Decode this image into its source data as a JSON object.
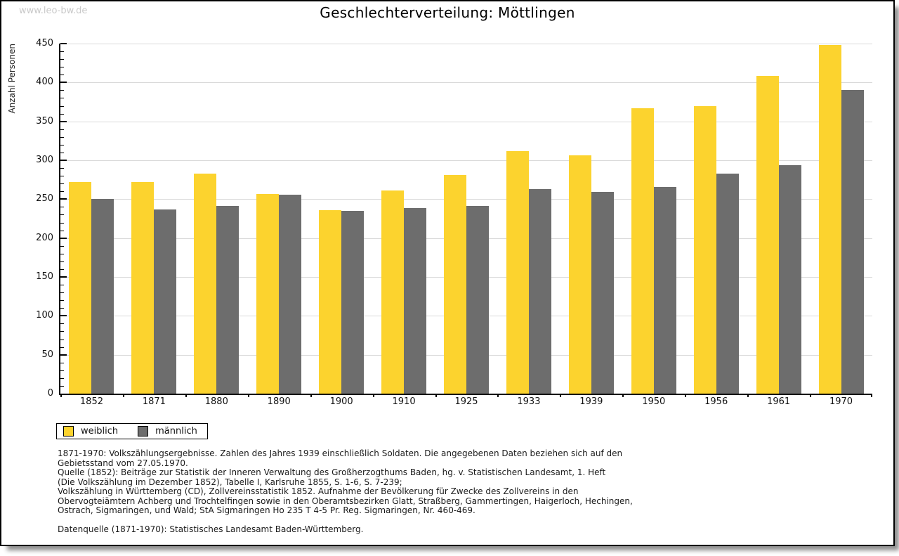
{
  "page": {
    "watermark": "www.leo-bw.de",
    "title": "Geschlechterverteilung: Möttlingen"
  },
  "chart_data": {
    "type": "bar",
    "title": "Geschlechterverteilung: Möttlingen",
    "xlabel": "",
    "ylabel": "Anzahl Personen",
    "ylim": [
      0,
      450
    ],
    "ytick_major": 50,
    "ytick_minor": 10,
    "grid": true,
    "legend_position": "bottom-left",
    "categories": [
      "1852",
      "1871",
      "1880",
      "1890",
      "1900",
      "1910",
      "1925",
      "1933",
      "1939",
      "1950",
      "1956",
      "1961",
      "1970"
    ],
    "series": [
      {
        "name": "weiblich",
        "color": "#fcd32e",
        "values": [
          272,
          272,
          283,
          257,
          236,
          261,
          281,
          312,
          306,
          367,
          370,
          408,
          448
        ]
      },
      {
        "name": "männlich",
        "color": "#6d6d6d",
        "values": [
          250,
          237,
          241,
          256,
          235,
          239,
          241,
          263,
          259,
          266,
          283,
          294,
          390
        ]
      }
    ]
  },
  "legend": {
    "items": [
      {
        "label": "weiblich",
        "color": "#fcd32e"
      },
      {
        "label": "männlich",
        "color": "#6d6d6d"
      }
    ]
  },
  "footnote": {
    "lines": [
      "1871-1970: Volkszählungsergebnisse. Zahlen des Jahres 1939 einschließlich Soldaten. Die angegebenen Daten beziehen sich auf den",
      "Gebietsstand vom 27.05.1970.",
      "Quelle (1852): Beiträge zur Statistik der Inneren Verwaltung des Großherzogthums Baden, hg. v. Statistischen Landesamt, 1. Heft",
      "(Die Volkszählung im Dezember 1852), Tabelle I, Karlsruhe 1855, S. 1-6, S. 7-239;",
      "Volkszählung in Württemberg (CD), Zollvereinsstatistik 1852. Aufnahme der Bevölkerung für Zwecke des Zollvereins in den",
      "Obervogteiämtern Achberg und Trochtelfingen sowie in den Oberamtsbezirken Glatt, Straßberg, Gammertingen, Haigerloch, Hechingen,",
      "Ostrach, Sigmaringen, und Wald; StA Sigmaringen Ho 235 T 4-5 Pr. Reg. Sigmaringen, Nr. 460-469."
    ],
    "datenquelle": "Datenquelle (1871-1970): Statistisches Landesamt Baden-Württemberg."
  },
  "colors": {
    "bar_female": "#fcd32e",
    "bar_male": "#6d6d6d",
    "gridline": "#d9d9d9",
    "axis": "#000000",
    "watermark": "#c9c9c9"
  }
}
